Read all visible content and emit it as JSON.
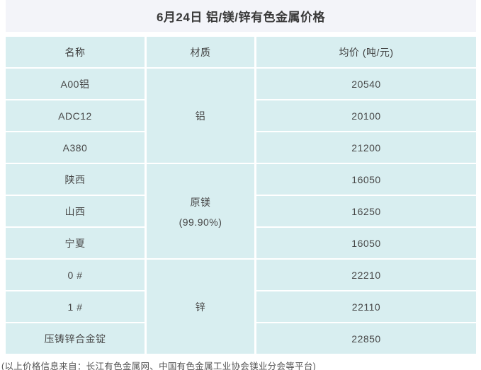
{
  "page": {
    "title": "6月24日 铝/镁/锌有色金属价格",
    "footer": "(以上价格信息来自：长江有色金属网、中国有色金属工业协会镁业分会等平台)"
  },
  "colors": {
    "page_bg": "#ffffff",
    "banner_bg": "#f3f4f9",
    "cell_bg": "#d8eef0",
    "title_text": "#3a3a3a",
    "cell_text": "#474747",
    "footer_text": "#545454"
  },
  "table": {
    "headers": [
      "名称",
      "材质",
      "均价 (吨/元)"
    ],
    "groups": [
      {
        "material": "铝",
        "material_note": "",
        "rows": [
          {
            "name": "A00铝",
            "price": "20540"
          },
          {
            "name": "ADC12",
            "price": "20100"
          },
          {
            "name": "A380",
            "price": "21200"
          }
        ]
      },
      {
        "material": "原镁",
        "material_note": "(99.90%)",
        "rows": [
          {
            "name": "陕西",
            "price": "16050"
          },
          {
            "name": "山西",
            "price": "16250"
          },
          {
            "name": "宁夏",
            "price": "16050"
          }
        ]
      },
      {
        "material": "锌",
        "material_note": "",
        "rows": [
          {
            "name": "0 #",
            "price": "22210"
          },
          {
            "name": "1 #",
            "price": "22110"
          },
          {
            "name": "压铸锌合金锭",
            "price": "22850"
          }
        ]
      }
    ]
  },
  "chart_data": {
    "type": "table",
    "title": "6月24日 铝/镁/锌有色金属价格",
    "columns": [
      "名称",
      "材质",
      "均价 (吨/元)"
    ],
    "rows": [
      [
        "A00铝",
        "铝",
        20540
      ],
      [
        "ADC12",
        "铝",
        20100
      ],
      [
        "A380",
        "铝",
        21200
      ],
      [
        "陕西",
        "原镁 (99.90%)",
        16050
      ],
      [
        "山西",
        "原镁 (99.90%)",
        16250
      ],
      [
        "宁夏",
        "原镁 (99.90%)",
        16050
      ],
      [
        "0 #",
        "锌",
        22210
      ],
      [
        "1 #",
        "锌",
        22110
      ],
      [
        "压铸锌合金锭",
        "锌",
        22850
      ]
    ],
    "source_note": "(以上价格信息来自：长江有色金属网、中国有色金属工业协会镁业分会等平台)"
  }
}
